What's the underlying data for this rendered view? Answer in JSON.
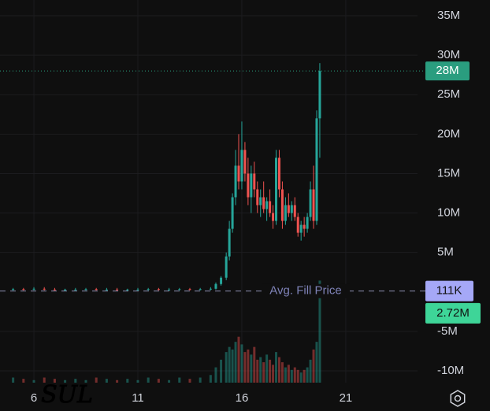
{
  "chart_data": {
    "type": "candlestick",
    "x": [
      5,
      5.5,
      6,
      6.5,
      7,
      7.5,
      8,
      8.5,
      9,
      9.5,
      10,
      10.5,
      11,
      11.5,
      12,
      12.5,
      13,
      13.5,
      14,
      14.5,
      14.75,
      15,
      15.25,
      15.4,
      15.55,
      15.7,
      15.85,
      16,
      16.15,
      16.3,
      16.45,
      16.6,
      16.75,
      16.9,
      17.05,
      17.2,
      17.35,
      17.5,
      17.65,
      17.8,
      17.95,
      18.1,
      18.25,
      18.4,
      18.55,
      18.7,
      18.85,
      19,
      19.15,
      19.3,
      19.45,
      19.6,
      19.75
    ],
    "open": [
      0.3,
      0.35,
      0.3,
      0.4,
      0.3,
      0.25,
      0.3,
      0.3,
      0.35,
      0.3,
      0.3,
      0.25,
      0.3,
      0.3,
      0.35,
      0.3,
      0.3,
      0.35,
      0.3,
      0.35,
      0.4,
      1,
      1.8,
      4.5,
      8,
      12,
      16,
      14,
      18,
      15,
      12,
      15,
      13,
      11,
      12,
      10.5,
      11.5,
      10,
      9,
      17,
      13,
      9,
      11,
      10,
      11,
      9.5,
      7.5,
      8.5,
      8,
      9.5,
      13,
      9,
      22
    ],
    "high": [
      0.5,
      0.5,
      0.6,
      0.6,
      0.5,
      0.4,
      0.5,
      0.5,
      0.5,
      0.5,
      0.5,
      0.4,
      0.5,
      0.5,
      0.5,
      0.5,
      0.5,
      0.5,
      0.5,
      0.6,
      1.2,
      2,
      5,
      9,
      12.5,
      18,
      20,
      21.6,
      19,
      17,
      16,
      16.5,
      14,
      13,
      14,
      12,
      13,
      11,
      18,
      18,
      14,
      12,
      12.5,
      11.5,
      12,
      10,
      9,
      9.5,
      10,
      14,
      16,
      23,
      29
    ],
    "low": [
      0.2,
      0.2,
      0.2,
      0.2,
      0.2,
      0.1,
      0.2,
      0.2,
      0.2,
      0.2,
      0.2,
      0.1,
      0.2,
      0.2,
      0.2,
      0.2,
      0.2,
      0.2,
      0.2,
      0.2,
      0.3,
      0.8,
      1.5,
      4,
      7.5,
      11,
      13,
      13,
      14,
      11,
      10,
      12,
      10,
      9.5,
      10,
      9,
      9.5,
      8,
      8.5,
      12,
      8,
      8.5,
      9.5,
      9,
      9,
      7,
      6.5,
      7,
      7.5,
      9,
      8,
      8.5,
      17
    ],
    "close": [
      0.35,
      0.3,
      0.4,
      0.3,
      0.25,
      0.3,
      0.3,
      0.35,
      0.3,
      0.3,
      0.25,
      0.3,
      0.3,
      0.35,
      0.3,
      0.3,
      0.35,
      0.3,
      0.35,
      0.4,
      1,
      1.8,
      4.5,
      8,
      12,
      16,
      14,
      18,
      15,
      12,
      15,
      13,
      11,
      12,
      10.5,
      11.5,
      10,
      9,
      17,
      13,
      9,
      11,
      10,
      11,
      9.5,
      7.5,
      8.5,
      8,
      9.5,
      13,
      9,
      22,
      28
    ],
    "volume": [
      0.2,
      0.15,
      0.1,
      0.2,
      0.15,
      0.1,
      0.15,
      0.1,
      0.2,
      0.15,
      0.1,
      0.15,
      0.1,
      0.2,
      0.15,
      0.1,
      0.2,
      0.15,
      0.2,
      0.3,
      0.6,
      0.9,
      1.2,
      1.4,
      1.3,
      1.6,
      1.8,
      1.5,
      1.2,
      1.3,
      1.1,
      1.4,
      0.9,
      1,
      0.8,
      1.1,
      0.9,
      0.7,
      1.2,
      1,
      0.8,
      0.6,
      0.7,
      0.5,
      0.6,
      0.5,
      0.4,
      0.5,
      0.6,
      0.9,
      1.3,
      1.6,
      4
    ],
    "up_color": "#26a69a",
    "down_color": "#ef5350",
    "xlim": [
      4.37,
      24.45
    ],
    "ylim": [
      -11.5,
      37
    ],
    "volume_lim": [
      0,
      15
    ],
    "xticks": [
      6,
      11,
      16,
      21
    ],
    "yticks": [
      {
        "value": 35,
        "label": "35M"
      },
      {
        "value": 30,
        "label": "30M"
      },
      {
        "value": 25,
        "label": "25M"
      },
      {
        "value": 20,
        "label": "20M"
      },
      {
        "value": 15,
        "label": "15M"
      },
      {
        "value": 10,
        "label": "10M"
      },
      {
        "value": 5,
        "label": "5M"
      },
      {
        "value": -5,
        "label": "-5M"
      },
      {
        "value": -10,
        "label": "-10M"
      }
    ],
    "grid": true,
    "last_price": {
      "value": 28,
      "label": "28M",
      "color": "#2a9d7f"
    },
    "avg_fill": {
      "value": 0.111,
      "label": "111K",
      "text": "Avg. Fill Price",
      "color": "#a5a8f7"
    },
    "volume_tag": {
      "value": 2.72,
      "label": "2.72M",
      "color": "#3ed598"
    },
    "annotation": "SUL"
  }
}
